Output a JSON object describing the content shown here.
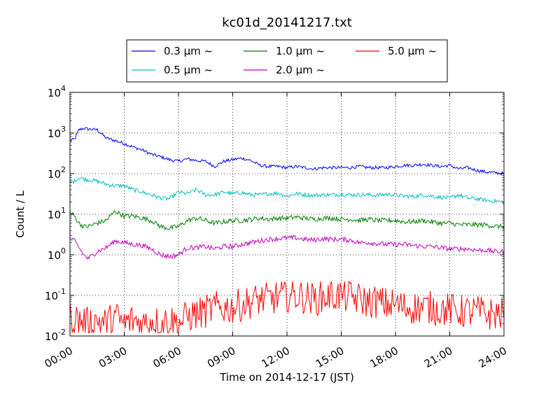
{
  "chart_data": {
    "type": "line",
    "title": "kc01d_20141217.txt",
    "xlabel": "Time on 2014-12-17 (JST)",
    "ylabel": "Count / L",
    "x_ticks": [
      "00:00",
      "03:00",
      "06:00",
      "09:00",
      "12:00",
      "15:00",
      "18:00",
      "21:00",
      "24:00"
    ],
    "xlim_hours": [
      0,
      24
    ],
    "yscale": "log",
    "ylim": [
      0.01,
      10000
    ],
    "y_ticks": [
      {
        "value": 0.01,
        "base": "10",
        "exp": "-2"
      },
      {
        "value": 0.1,
        "base": "10",
        "exp": "-1"
      },
      {
        "value": 1,
        "base": "10",
        "exp": "0"
      },
      {
        "value": 10,
        "base": "10",
        "exp": "1"
      },
      {
        "value": 100,
        "base": "10",
        "exp": "2"
      },
      {
        "value": 1000,
        "base": "10",
        "exp": "3"
      },
      {
        "value": 10000,
        "base": "10",
        "exp": "4"
      }
    ],
    "grid": true,
    "legend_position": "top-center",
    "series": [
      {
        "name": "0.3 μm ~",
        "color": "#0000ff",
        "x": [
          0,
          0.25,
          0.5,
          0.75,
          1.0,
          1.5,
          2.0,
          2.5,
          3.0,
          3.5,
          4.0,
          4.5,
          5.0,
          5.5,
          6.0,
          6.5,
          7.0,
          7.5,
          8.0,
          8.5,
          9.0,
          9.5,
          10.0,
          10.5,
          11.0,
          11.5,
          12.0,
          12.5,
          13.0,
          13.5,
          14.0,
          14.5,
          15.0,
          15.5,
          16.0,
          16.5,
          17.0,
          17.5,
          18.0,
          18.5,
          19.0,
          19.5,
          20.0,
          20.5,
          21.0,
          21.5,
          22.0,
          22.5,
          23.0,
          23.5,
          24.0
        ],
        "y": [
          650,
          700,
          1200,
          1300,
          1250,
          1200,
          750,
          650,
          550,
          450,
          380,
          300,
          260,
          220,
          200,
          230,
          210,
          200,
          150,
          200,
          220,
          240,
          210,
          160,
          150,
          150,
          140,
          150,
          140,
          130,
          140,
          140,
          140,
          140,
          150,
          140,
          140,
          140,
          150,
          160,
          160,
          170,
          160,
          150,
          160,
          130,
          140,
          120,
          110,
          105,
          100
        ]
      },
      {
        "name": "0.5 μm ~",
        "color": "#00bfbf",
        "x": [
          0,
          0.25,
          0.5,
          0.75,
          1.0,
          1.5,
          2.0,
          2.5,
          3.0,
          3.5,
          4.0,
          4.5,
          5.0,
          5.5,
          6.0,
          6.5,
          7.0,
          7.5,
          8.0,
          8.5,
          9.0,
          9.5,
          10.0,
          10.5,
          11.0,
          11.5,
          12.0,
          12.5,
          13.0,
          13.5,
          14.0,
          14.5,
          15.0,
          15.5,
          16.0,
          16.5,
          17.0,
          17.5,
          18.0,
          18.5,
          19.0,
          19.5,
          20.0,
          20.5,
          21.0,
          21.5,
          22.0,
          22.5,
          23.0,
          23.5,
          24.0
        ],
        "y": [
          60,
          65,
          80,
          75,
          70,
          65,
          55,
          50,
          50,
          40,
          35,
          30,
          25,
          24,
          35,
          32,
          40,
          30,
          30,
          35,
          32,
          34,
          30,
          30,
          32,
          33,
          28,
          32,
          30,
          29,
          30,
          30,
          31,
          30,
          30,
          30,
          29,
          31,
          30,
          28,
          27,
          30,
          28,
          26,
          25,
          30,
          25,
          24,
          22,
          21,
          20
        ]
      },
      {
        "name": "1.0 μm ~",
        "color": "#008000",
        "x": [
          0,
          0.25,
          0.5,
          0.75,
          1.0,
          1.5,
          2.0,
          2.5,
          3.0,
          3.5,
          4.0,
          4.5,
          5.0,
          5.5,
          6.0,
          6.5,
          7.0,
          7.5,
          8.0,
          8.5,
          9.0,
          9.5,
          10.0,
          10.5,
          11.0,
          11.5,
          12.0,
          12.5,
          13.0,
          13.5,
          14.0,
          14.5,
          15.0,
          15.5,
          16.0,
          16.5,
          17.0,
          17.5,
          18.0,
          18.5,
          19.0,
          19.5,
          20.0,
          20.5,
          21.0,
          21.5,
          22.0,
          22.5,
          23.0,
          23.5,
          24.0
        ],
        "y": [
          11,
          9,
          6,
          5,
          5,
          6,
          7,
          12,
          9,
          9,
          8,
          7,
          5,
          4.5,
          5,
          7,
          8,
          7,
          6,
          6.5,
          7,
          7,
          7.5,
          8,
          7.5,
          8,
          8,
          8.5,
          8,
          7.5,
          8,
          8,
          7.5,
          7.5,
          7,
          7.5,
          7,
          7,
          7,
          6.5,
          6.5,
          7,
          6.5,
          6,
          6,
          5.5,
          5.5,
          5.5,
          5.5,
          5,
          5
        ]
      },
      {
        "name": "2.0 μm ~",
        "color": "#bf00bf",
        "x": [
          0,
          0.25,
          0.5,
          0.75,
          1.0,
          1.5,
          2.0,
          2.5,
          3.0,
          3.5,
          4.0,
          4.5,
          5.0,
          5.5,
          6.0,
          6.5,
          7.0,
          7.5,
          8.0,
          8.5,
          9.0,
          9.5,
          10.0,
          10.5,
          11.0,
          11.5,
          12.0,
          12.5,
          13.0,
          13.5,
          14.0,
          14.5,
          15.0,
          15.5,
          16.0,
          16.5,
          17.0,
          17.5,
          18.0,
          18.5,
          19.0,
          19.5,
          20.0,
          20.5,
          21.0,
          21.5,
          22.0,
          22.5,
          23.0,
          23.5,
          24.0
        ],
        "y": [
          2.5,
          2.2,
          1.5,
          1.0,
          0.8,
          1.2,
          1.5,
          2.2,
          2.0,
          1.8,
          1.7,
          1.4,
          1.0,
          0.9,
          1.0,
          1.5,
          1.5,
          1.6,
          1.4,
          1.6,
          1.6,
          1.8,
          2.0,
          2.2,
          2.4,
          2.5,
          2.6,
          2.6,
          2.4,
          2.3,
          2.5,
          2.4,
          2.4,
          2.3,
          2.0,
          2.0,
          1.9,
          1.8,
          1.8,
          1.8,
          1.7,
          1.6,
          1.6,
          1.5,
          1.4,
          1.4,
          1.4,
          1.3,
          1.3,
          1.2,
          1.2
        ]
      },
      {
        "name": "5.0 μm ~",
        "color": "#ff0000",
        "x": [
          0,
          0.5,
          1.0,
          1.5,
          2.0,
          2.5,
          3.0,
          3.5,
          4.0,
          4.5,
          5.0,
          5.5,
          6.0,
          6.5,
          7.0,
          7.5,
          8.0,
          8.5,
          9.0,
          9.5,
          10.0,
          10.5,
          11.0,
          11.5,
          12.0,
          12.5,
          13.0,
          13.5,
          14.0,
          14.5,
          15.0,
          15.5,
          16.0,
          16.5,
          17.0,
          17.5,
          18.0,
          18.5,
          19.0,
          19.5,
          20.0,
          20.5,
          21.0,
          21.5,
          22.0,
          22.5,
          23.0,
          23.5,
          24.0
        ],
        "y": [
          0.03,
          0.025,
          0.02,
          0.025,
          0.02,
          0.03,
          0.02,
          0.025,
          0.02,
          0.025,
          0.02,
          0.025,
          0.02,
          0.03,
          0.035,
          0.04,
          0.05,
          0.05,
          0.05,
          0.06,
          0.07,
          0.08,
          0.08,
          0.09,
          0.1,
          0.1,
          0.09,
          0.08,
          0.09,
          0.1,
          0.1,
          0.09,
          0.08,
          0.07,
          0.07,
          0.06,
          0.06,
          0.05,
          0.05,
          0.05,
          0.05,
          0.045,
          0.045,
          0.04,
          0.04,
          0.04,
          0.035,
          0.035,
          0.035
        ]
      }
    ]
  }
}
